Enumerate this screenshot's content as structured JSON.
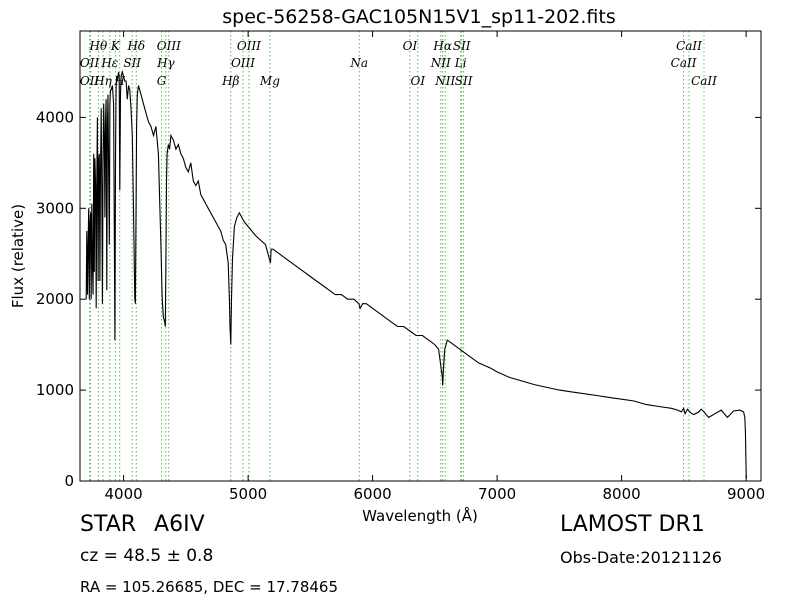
{
  "chart_data": {
    "type": "line",
    "title": "spec-56258-GAC105N15V1_sp11-202.fits",
    "xlabel": "Wavelength (Å)",
    "ylabel": "Flux (relative)",
    "xlim": [
      3650,
      9120
    ],
    "ylim": [
      0,
      4950
    ],
    "xticks": [
      "4000",
      "5000",
      "6000",
      "7000",
      "8000",
      "9000"
    ],
    "yticks": [
      "0",
      "1000",
      "2000",
      "3000",
      "4000"
    ],
    "grid": false,
    "series": [
      {
        "x": [
          3700,
          3705,
          3710,
          3715,
          3720,
          3725,
          3730,
          3735,
          3740,
          3745,
          3750,
          3755,
          3760,
          3765,
          3770,
          3775,
          3780,
          3785,
          3790,
          3795,
          3800,
          3805,
          3810,
          3815,
          3820,
          3825,
          3830,
          3835,
          3840,
          3845,
          3850,
          3855,
          3860,
          3865,
          3870,
          3875,
          3880,
          3885,
          3890,
          3895,
          3900,
          3910,
          3920,
          3930,
          3935,
          3940,
          3945,
          3950,
          3960,
          3965,
          3970,
          3975,
          3980,
          3990,
          4000,
          4010,
          4020,
          4030,
          4040,
          4050,
          4060,
          4070,
          4080,
          4090,
          4095,
          4100,
          4105,
          4110,
          4115,
          4120,
          4130,
          4150,
          4170,
          4190,
          4200,
          4220,
          4240,
          4260,
          4280,
          4300,
          4310,
          4320,
          4330,
          4335,
          4340,
          4345,
          4350,
          4360,
          4370,
          4380,
          4400,
          4420,
          4440,
          4460,
          4480,
          4500,
          4520,
          4540,
          4560,
          4580,
          4600,
          4620,
          4640,
          4660,
          4680,
          4700,
          4720,
          4740,
          4760,
          4780,
          4800,
          4820,
          4840,
          4850,
          4855,
          4861,
          4867,
          4875,
          4890,
          4910,
          4930,
          4950,
          4970,
          5000,
          5030,
          5060,
          5100,
          5140,
          5170,
          5180,
          5185,
          5200,
          5250,
          5300,
          5350,
          5400,
          5450,
          5500,
          5550,
          5600,
          5650,
          5700,
          5750,
          5800,
          5850,
          5890,
          5900,
          5920,
          5950,
          6000,
          6050,
          6100,
          6150,
          6200,
          6250,
          6300,
          6350,
          6400,
          6450,
          6500,
          6530,
          6550,
          6560,
          6563,
          6570,
          6580,
          6600,
          6650,
          6700,
          6750,
          6800,
          6850,
          6900,
          6950,
          7000,
          7100,
          7200,
          7300,
          7400,
          7500,
          7600,
          7700,
          7800,
          7900,
          8000,
          8100,
          8200,
          8300,
          8400,
          8450,
          8480,
          8498,
          8510,
          8530,
          8542,
          8555,
          8580,
          8620,
          8640,
          8662,
          8680,
          8700,
          8750,
          8800,
          8850,
          8900,
          8950,
          8980,
          8990,
          8995,
          9000,
          9003
        ],
        "y": [
          2000,
          2750,
          2050,
          2600,
          3000,
          2000,
          2850,
          2950,
          2000,
          3050,
          2400,
          2050,
          3600,
          2300,
          3550,
          3250,
          1900,
          3300,
          4000,
          2200,
          3550,
          3600,
          2200,
          3400,
          4100,
          3200,
          1950,
          3450,
          4150,
          3800,
          2900,
          3950,
          4200,
          2100,
          3900,
          4250,
          3450,
          2600,
          4150,
          4300,
          4300,
          4350,
          4150,
          1550,
          3500,
          4350,
          4450,
          4400,
          4500,
          4450,
          3200,
          4250,
          4450,
          4500,
          4450,
          4400,
          4400,
          4200,
          4350,
          4300,
          4100,
          3800,
          3000,
          2000,
          1950,
          2900,
          3900,
          4250,
          4300,
          4350,
          4300,
          4200,
          4100,
          4000,
          3950,
          3900,
          3800,
          3900,
          3600,
          2600,
          2000,
          1800,
          1750,
          1700,
          2400,
          3300,
          3600,
          3700,
          3650,
          3800,
          3750,
          3650,
          3700,
          3600,
          3550,
          3450,
          3400,
          3500,
          3300,
          3250,
          3300,
          3150,
          3100,
          3050,
          3000,
          2950,
          2900,
          2850,
          2800,
          2750,
          2650,
          2600,
          2400,
          2000,
          1700,
          1500,
          2000,
          2450,
          2800,
          2900,
          2950,
          2900,
          2850,
          2800,
          2750,
          2700,
          2650,
          2600,
          2450,
          2400,
          2550,
          2550,
          2500,
          2450,
          2400,
          2350,
          2300,
          2250,
          2200,
          2150,
          2100,
          2050,
          2050,
          2000,
          2000,
          1950,
          1900,
          1950,
          1950,
          1900,
          1850,
          1800,
          1750,
          1700,
          1700,
          1650,
          1600,
          1600,
          1550,
          1500,
          1450,
          1250,
          1150,
          1050,
          1250,
          1450,
          1550,
          1500,
          1450,
          1400,
          1350,
          1300,
          1270,
          1240,
          1200,
          1140,
          1100,
          1060,
          1030,
          1000,
          980,
          960,
          940,
          920,
          900,
          880,
          840,
          820,
          800,
          780,
          760,
          800,
          740,
          790,
          770,
          750,
          730,
          760,
          790,
          760,
          730,
          700,
          740,
          780,
          700,
          770,
          780,
          760,
          700,
          550,
          120,
          30
        ]
      }
    ],
    "annotations": [
      {
        "label": "Hθ",
        "x": 3798,
        "row": 1,
        "style": "italic"
      },
      {
        "label": "K",
        "x": 3934,
        "row": 1,
        "style": "italic"
      },
      {
        "label": "Hδ",
        "x": 4102,
        "row": 1,
        "style": "italic"
      },
      {
        "label": "OIII",
        "x": 4363,
        "row": 1,
        "style": "italic"
      },
      {
        "label": "OIII",
        "x": 5007,
        "row": 1,
        "style": "italic"
      },
      {
        "label": "OI",
        "x": 6300,
        "row": 1,
        "style": "italic"
      },
      {
        "label": "Hα",
        "x": 6563,
        "row": 1,
        "style": "italic"
      },
      {
        "label": "SII",
        "x": 6716,
        "row": 1,
        "style": "italic"
      },
      {
        "label": "CaII",
        "x": 8542,
        "row": 1,
        "style": "italic"
      },
      {
        "label": "OII",
        "x": 3727,
        "row": 2,
        "style": "italic"
      },
      {
        "label": "Hε",
        "x": 3889,
        "row": 2,
        "style": "italic"
      },
      {
        "label": "SII",
        "x": 4069,
        "row": 2,
        "style": "italic"
      },
      {
        "label": "Hγ",
        "x": 4340,
        "row": 2,
        "style": "italic"
      },
      {
        "label": "OIII",
        "x": 4959,
        "row": 2,
        "style": "italic"
      },
      {
        "label": "Na",
        "x": 5893,
        "row": 2,
        "style": "italic"
      },
      {
        "label": "NII",
        "x": 6548,
        "row": 2,
        "style": "italic"
      },
      {
        "label": "Li",
        "x": 6708,
        "row": 2,
        "style": "italic"
      },
      {
        "label": "CaII",
        "x": 8498,
        "row": 2,
        "style": "italic"
      },
      {
        "label": "OII",
        "x": 3727,
        "row": 3,
        "style": "italic"
      },
      {
        "label": "Hη",
        "x": 3835,
        "row": 3,
        "style": "italic"
      },
      {
        "label": "H",
        "x": 3969,
        "row": 3,
        "style": "italic"
      },
      {
        "label": "G",
        "x": 4305,
        "row": 3,
        "style": "italic"
      },
      {
        "label": "Hβ",
        "x": 4861,
        "row": 3,
        "style": "italic"
      },
      {
        "label": "Mg",
        "x": 5175,
        "row": 3,
        "style": "italic"
      },
      {
        "label": "OI",
        "x": 6363,
        "row": 3,
        "style": "italic"
      },
      {
        "label": "NII",
        "x": 6583,
        "row": 3,
        "style": "italic"
      },
      {
        "label": "SII",
        "x": 6731,
        "row": 3,
        "style": "italic"
      },
      {
        "label": "CaII",
        "x": 8662,
        "row": 3,
        "style": "italic"
      }
    ],
    "line_markers": [
      3727,
      3734,
      3798,
      3835,
      3889,
      3934,
      3969,
      4069,
      4102,
      4305,
      4340,
      4363,
      4861,
      4959,
      5007,
      5175,
      5893,
      6300,
      6363,
      6548,
      6563,
      6583,
      6708,
      6716,
      6731,
      8498,
      8542,
      8662
    ],
    "colors": {
      "spectrum": "#000000",
      "markers": "#55bb55",
      "frame": "#000000"
    }
  },
  "info": {
    "object_class": "STAR",
    "subclass": "A6IV",
    "cz": "cz = 48.5  ± 0.8",
    "radec": "RA = 105.26685, DEC = 17.78465",
    "survey": "LAMOST DR1",
    "obs_date": "Obs-Date:20121126"
  }
}
